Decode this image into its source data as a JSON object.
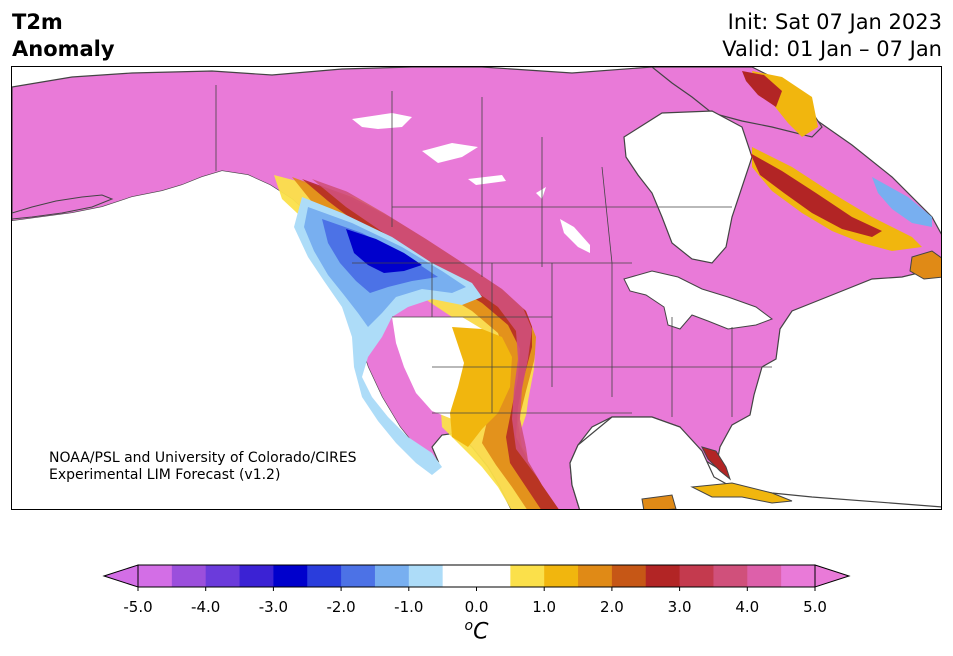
{
  "header": {
    "variable_line1": "T2m",
    "variable_line2": "Anomaly",
    "init": "Init: Sat 07 Jan 2023",
    "valid": "Valid: 01 Jan – 07 Jan"
  },
  "credit": {
    "line1": "NOAA/PSL and University of Colorado/CIRES",
    "line2": "Experimental LIM Forecast (v1.2)"
  },
  "colorbar": {
    "unit_base": "C",
    "unit_sup": "o",
    "ticks": [
      "-5.0",
      "-4.0",
      "-3.0",
      "-2.0",
      "-1.0",
      "0.0",
      "1.0",
      "2.0",
      "3.0",
      "4.0",
      "5.0"
    ],
    "colors": [
      "#d36ee6",
      "#9b4fdc",
      "#6b3bdb",
      "#3b22d4",
      "#0000cc",
      "#2a3ddc",
      "#4c72e6",
      "#78aff0",
      "#addcf8",
      "#ffffff",
      "#ffffff",
      "#fbe04a",
      "#f1b60e",
      "#e08a16",
      "#c65716",
      "#b22525",
      "#c43a4e",
      "#d0507b",
      "#dd60aa",
      "#e97ad8"
    ],
    "under_color": "#d36ee6",
    "over_color": "#e97ad8"
  },
  "map_colors": {
    "land_default": "#e97ad8",
    "ocean": "#ffffff",
    "coast": "#444444"
  }
}
